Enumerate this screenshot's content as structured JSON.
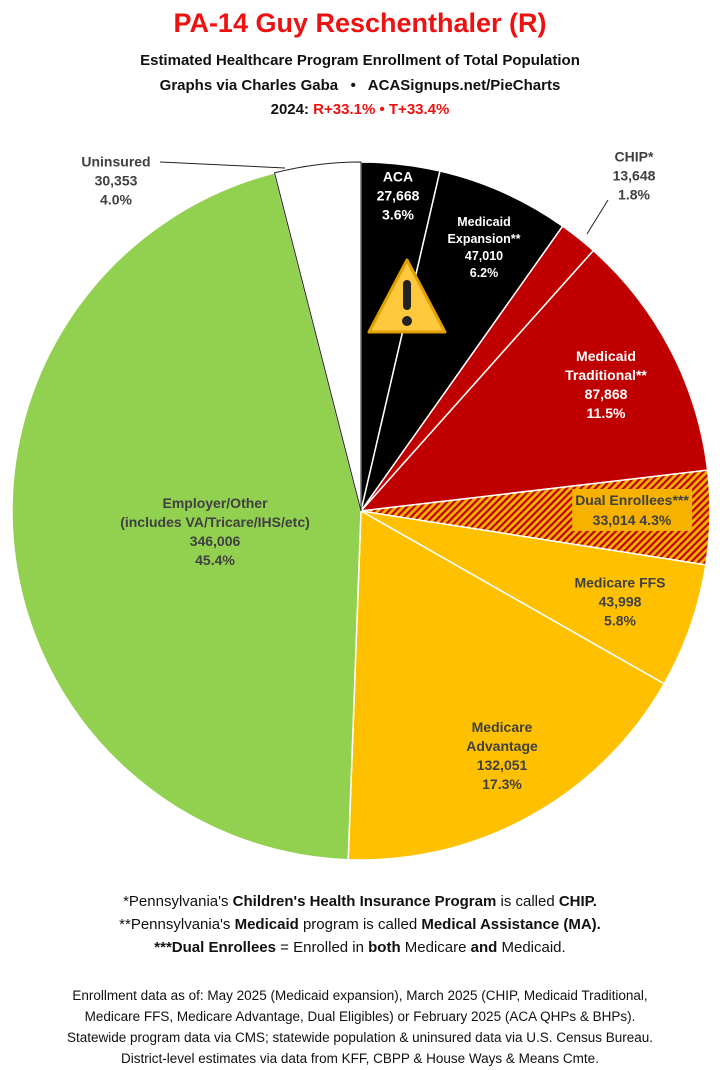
{
  "header": {
    "title": "PA-14 Guy Reschenthaler (R)",
    "subtitle": "Estimated Healthcare Program Enrollment of Total Population",
    "credit": "Graphs via Charles Gaba   •   ACASignups.net/PieCharts",
    "year_label": "2024: ",
    "margin_r": "R+33.1%",
    "sep": " • ",
    "margin_t": "T+33.4%"
  },
  "chart_data": {
    "type": "pie",
    "start": "12 o'clock, clockwise",
    "slices": [
      {
        "name": "ACA",
        "value": 27668,
        "pct": "3.6%",
        "value_label": "27,668",
        "color": "#000000"
      },
      {
        "name": "Medicaid Expansion**",
        "value": 47010,
        "pct": "6.2%",
        "value_label": "47,010",
        "color": "#000000"
      },
      {
        "name": "CHIP*",
        "value": 13648,
        "pct": "1.8%",
        "value_label": "13,648",
        "color": "#c00000"
      },
      {
        "name": "Medicaid Traditional**",
        "value": 87868,
        "pct": "11.5%",
        "value_label": "87,868",
        "color": "#c00000"
      },
      {
        "name": "Dual Enrollees***",
        "value": 33014,
        "pct": "4.3%",
        "value_label": "33,014",
        "color": "#f7b200",
        "pattern": "hatched red/orange"
      },
      {
        "name": "Medicare FFS",
        "value": 43998,
        "pct": "5.8%",
        "value_label": "43,998",
        "color": "#ffc000"
      },
      {
        "name": "Medicare Advantage",
        "value": 132051,
        "pct": "17.3%",
        "value_label": "132,051",
        "color": "#ffc000"
      },
      {
        "name": "Employer/Other",
        "sub": "(includes VA/Tricare/IHS/etc)",
        "value": 346006,
        "pct": "45.4%",
        "value_label": "346,006",
        "color": "#92d050"
      },
      {
        "name": "Uninsured",
        "value": 30353,
        "pct": "4.0%",
        "value_label": "30,353",
        "color": "#ffffff"
      }
    ],
    "icons": [
      "warning-icon"
    ]
  },
  "labels": {
    "aca": [
      "ACA",
      "27,668",
      "3.6%"
    ],
    "expansion": [
      "Medicaid",
      "Expansion**",
      "47,010",
      "6.2%"
    ],
    "chip": [
      "CHIP*",
      "13,648",
      "1.8%"
    ],
    "trad": [
      "Medicaid",
      "Traditional**",
      "87,868",
      "11.5%"
    ],
    "dual": [
      "Dual Enrollees***",
      "33,014 4.3%"
    ],
    "ffs": [
      "Medicare FFS",
      "43,998",
      "5.8%"
    ],
    "ma": [
      "Medicare",
      "Advantage",
      "132,051",
      "17.3%"
    ],
    "employer": [
      "Employer/Other",
      "(includes VA/Tricare/IHS/etc)",
      "346,006",
      "45.4%"
    ],
    "uninsured": [
      "Uninsured",
      "30,353",
      "4.0%"
    ]
  },
  "notes": {
    "n1a": "*Pennsylvania's ",
    "n1b": "Children's Health Insurance Program",
    "n1c": " is called ",
    "n1d": "CHIP.",
    "n2a": "**Pennsylvania's ",
    "n2b": "Medicaid",
    "n2c": " program is called ",
    "n2d": "Medical Assistance (MA).",
    "n3a": "***Dual Enrollees",
    "n3b": " = Enrolled in ",
    "n3c": "both",
    "n3d": " Medicare ",
    "n3e": "and",
    "n3f": " Medicaid.",
    "src1": "Enrollment data as of: May 2025 (Medicaid expansion), March 2025 (CHIP, Medicaid Traditional,",
    "src2": "Medicare FFS, Medicare Advantage, Dual Eligibles) or February 2025 (ACA QHPs & BHPs).",
    "src3": "Statewide program data via CMS; statewide population & uninsured data via U.S. Census Bureau.",
    "src4": "District-level estimates via data from KFF, CBPP & House Ways & Means Cmte."
  }
}
